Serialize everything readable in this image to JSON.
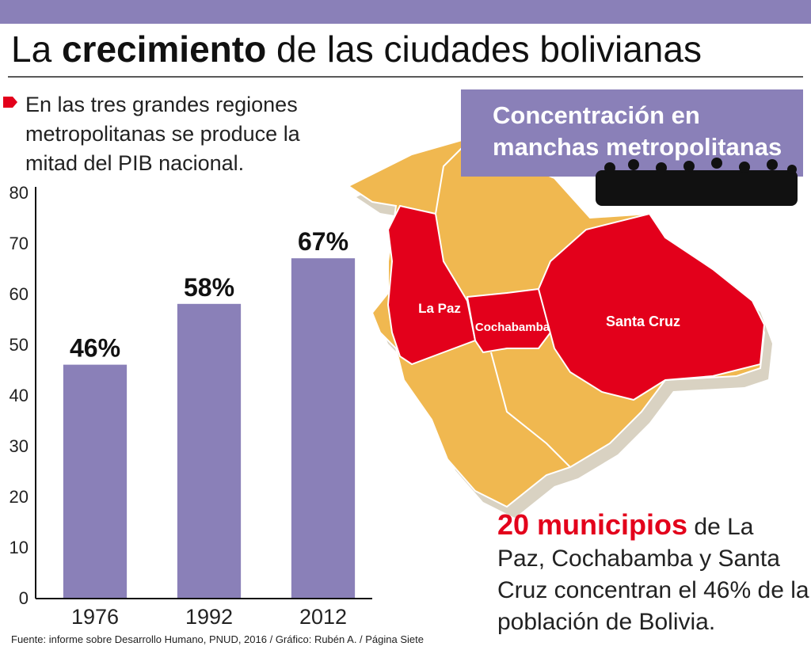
{
  "header": {
    "title_start": "La",
    "title_bold": "crecimiento",
    "title_end": "de las ciudades bolivianas"
  },
  "intro": [
    "En las  tres grandes regiones",
    "metropolitanas se produce la",
    "mitad del PIB nacional."
  ],
  "chart_data": {
    "type": "bar",
    "categories": [
      "1976",
      "1992",
      "2012"
    ],
    "values": [
      46,
      58,
      67
    ],
    "value_labels": [
      "46%",
      "58%",
      "67%"
    ],
    "color": "#8a80b8",
    "ylim": [
      0,
      80
    ],
    "yticks": [
      0,
      10,
      20,
      30,
      40,
      50,
      60,
      70,
      80
    ],
    "grid": false
  },
  "source": "Fuente: informe sobre Desarrollo Humano, PNUD, 2016 / Gráfico: Rubén A. / Página Siete",
  "map": {
    "heading": [
      "Concentración en",
      "manchas metropolitanas"
    ],
    "labels": [
      "La Paz",
      "Cochabamba",
      "Santa Cruz"
    ]
  },
  "note": {
    "highlight": "20 municipios",
    "lines": [
      "de La",
      "Paz, Cochabamba y Santa",
      "Cruz concentran el 46% de la",
      "población de Bolivia."
    ]
  }
}
